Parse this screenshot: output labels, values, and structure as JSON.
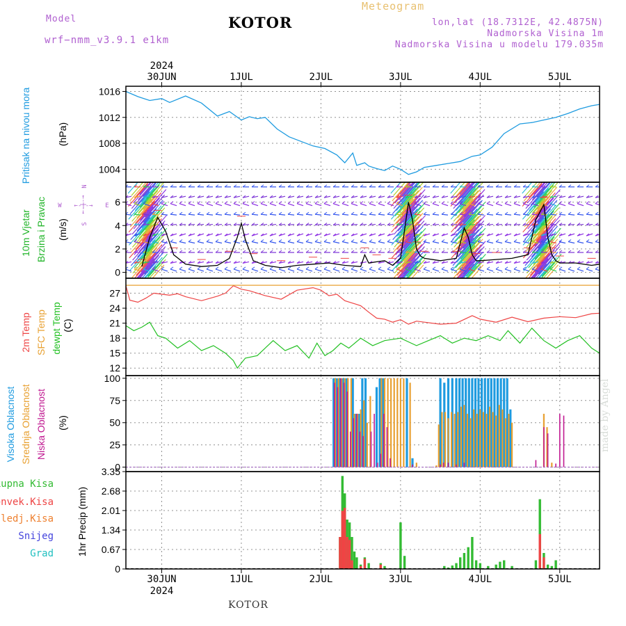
{
  "header": {
    "model_label": "Model",
    "model_name": "wrf−nmm_v3.9.1  e1km",
    "title": "KOTOR",
    "meteogram": "Meteogram",
    "lonlat": "lon,lat (18.7312E, 42.4875N)",
    "elevation": "Nadmorska Visina 1m",
    "model_elevation": "Nadmorska Visina u modelu 179.035m",
    "footer": "KOTOR",
    "credit": "made by Angel"
  },
  "colors": {
    "pressure": "#1e9be0",
    "wind_text": "#22b52a",
    "temp2m": "#ee4444",
    "sfc_temp": "#e8a030",
    "dewpt": "#22c022",
    "high_cloud": "#1e9be0",
    "mid_cloud": "#e8a030",
    "low_cloud": "#c01890",
    "total_precip": "#33bb33",
    "convective": "#ee4444",
    "frozen": "#ee8030",
    "snow": "#4444dd",
    "graupel": "#22c0c0",
    "compass": "#b060d0"
  },
  "chart_data": [
    {
      "type": "line",
      "top_year": "2024",
      "bottom_year": "2024",
      "x_categories": [
        "30JUN",
        "1JUL",
        "2JUL",
        "3JUL",
        "4JUL",
        "5JUL"
      ],
      "x_start": 29.55,
      "x_end": 35.5,
      "ylabel_main": "Pritisak na nivou mora",
      "ylabel_unit": "(hPa)",
      "ylim": [
        1002,
        1016.8
      ],
      "yticks": [
        1004,
        1008,
        1012,
        1016
      ],
      "series": [
        {
          "name": "Pritisak na nivou mora",
          "color_key": "pressure",
          "x": [
            29.55,
            29.7,
            29.85,
            30.0,
            30.1,
            30.3,
            30.5,
            30.7,
            30.85,
            31.0,
            31.1,
            31.2,
            31.3,
            31.45,
            31.6,
            31.75,
            31.9,
            32.05,
            32.2,
            32.3,
            32.4,
            32.45,
            32.55,
            32.6,
            32.7,
            32.8,
            32.9,
            33.0,
            33.1,
            33.2,
            33.3,
            33.45,
            33.6,
            33.75,
            33.9,
            34.0,
            34.15,
            34.3,
            34.5,
            34.65,
            34.8,
            34.95,
            35.1,
            35.25,
            35.4,
            35.5
          ],
          "values": [
            1016.0,
            1015.2,
            1014.6,
            1014.9,
            1014.3,
            1015.3,
            1014.2,
            1012.2,
            1012.9,
            1011.6,
            1012.1,
            1011.8,
            1012.0,
            1010.2,
            1009.0,
            1008.3,
            1007.6,
            1007.2,
            1006.2,
            1005.0,
            1006.5,
            1004.6,
            1005.0,
            1004.5,
            1004.1,
            1003.8,
            1004.5,
            1004.0,
            1003.2,
            1003.6,
            1004.3,
            1004.6,
            1004.9,
            1005.2,
            1006.0,
            1006.2,
            1007.4,
            1009.5,
            1011.0,
            1011.2,
            1011.6,
            1012.0,
            1012.6,
            1013.3,
            1013.8,
            1014.0
          ]
        }
      ]
    },
    {
      "type": "line",
      "ylabel_main_1": "10m Vjetar",
      "ylabel_main_2": "Brzina i Pravac",
      "ylabel_unit": "(m/s)",
      "compass": {
        "n": "N",
        "s": "S",
        "e": "E",
        "w": "W",
        "arrow": "←-|-→"
      },
      "ylim": [
        -0.5,
        7.7
      ],
      "yticks": [
        0,
        2,
        4,
        6
      ],
      "yticklabels": [
        "0",
        "2",
        "4",
        "6"
      ],
      "arrow_rows": [
        0.1,
        0.9,
        1.7,
        2.5,
        3.3,
        4.1,
        4.9,
        5.7,
        6.5,
        7.3
      ],
      "gust_bands": [
        [
          29.7,
          29.95
        ],
        [
          33.0,
          33.2
        ],
        [
          33.75,
          33.95
        ],
        [
          34.65,
          34.9
        ]
      ],
      "series": [
        {
          "name": "10m Vjetar",
          "color_key": "black",
          "x": [
            29.75,
            29.85,
            29.95,
            30.05,
            30.15,
            30.3,
            30.5,
            30.7,
            30.85,
            30.95,
            31.0,
            31.05,
            31.15,
            31.3,
            31.5,
            31.7,
            31.9,
            32.1,
            32.3,
            32.5,
            32.55,
            32.6,
            32.7,
            32.8,
            32.9,
            33.0,
            33.1,
            33.15,
            33.2,
            33.25,
            33.3,
            33.5,
            33.7,
            33.8,
            33.85,
            33.9,
            33.95,
            34.0,
            34.2,
            34.4,
            34.6,
            34.7,
            34.8,
            34.85,
            34.9,
            34.95,
            35.0,
            35.2,
            35.4,
            35.5
          ],
          "values": [
            0.5,
            3.0,
            4.7,
            3.5,
            1.5,
            0.7,
            0.5,
            0.6,
            1.2,
            3.0,
            4.2,
            2.8,
            1.0,
            0.6,
            0.4,
            0.6,
            0.7,
            0.8,
            0.6,
            0.5,
            1.5,
            0.8,
            0.9,
            1.0,
            0.6,
            1.2,
            6.0,
            4.5,
            2.0,
            1.4,
            1.2,
            1.0,
            1.2,
            3.8,
            3.0,
            1.5,
            1.0,
            1.0,
            1.1,
            1.2,
            1.5,
            4.5,
            5.8,
            3.0,
            1.5,
            1.0,
            0.8,
            0.8,
            0.6,
            0.7
          ]
        }
      ]
    },
    {
      "type": "line",
      "ylabel_main_1": "2m Temp",
      "ylabel_main_2": "SFC Temp",
      "ylabel_main_3": "dewpt Temp",
      "ylabel_unit": "(C)",
      "ylim": [
        10.5,
        30
      ],
      "yticks": [
        12,
        15,
        18,
        21,
        24,
        27
      ],
      "series": [
        {
          "name": "2m Temp",
          "color_key": "temp2m",
          "x": [
            29.55,
            29.6,
            29.7,
            29.8,
            29.9,
            30.0,
            30.1,
            30.2,
            30.3,
            30.5,
            30.7,
            30.8,
            30.9,
            31.0,
            31.1,
            31.3,
            31.5,
            31.7,
            31.9,
            32.0,
            32.1,
            32.2,
            32.3,
            32.4,
            32.5,
            32.6,
            32.7,
            32.8,
            32.9,
            33.0,
            33.1,
            33.2,
            33.3,
            33.5,
            33.7,
            33.9,
            34.0,
            34.2,
            34.4,
            34.6,
            34.8,
            35.0,
            35.2,
            35.4,
            35.5
          ],
          "values": [
            28.5,
            25.6,
            25.2,
            26.0,
            27.0,
            26.8,
            26.6,
            26.9,
            26.3,
            25.5,
            26.4,
            27.0,
            28.5,
            27.8,
            27.5,
            26.5,
            25.8,
            27.6,
            28.1,
            27.6,
            26.5,
            26.8,
            25.5,
            25.0,
            24.5,
            23.2,
            22.0,
            21.8,
            21.2,
            21.7,
            20.8,
            21.4,
            21.2,
            20.8,
            21.0,
            22.5,
            21.8,
            21.2,
            22.2,
            21.3,
            22.0,
            22.3,
            22.1,
            22.9,
            23.0
          ]
        },
        {
          "name": "SFC Temp",
          "color_key": "sfc_temp",
          "x": [
            29.55,
            35.5
          ],
          "values": [
            28.6,
            28.6
          ]
        },
        {
          "name": "dewpt Temp",
          "color_key": "dewpt",
          "x": [
            29.55,
            29.65,
            29.75,
            29.85,
            29.95,
            30.05,
            30.2,
            30.35,
            30.5,
            30.65,
            30.8,
            30.9,
            30.95,
            31.05,
            31.2,
            31.4,
            31.55,
            31.7,
            31.85,
            31.95,
            32.05,
            32.15,
            32.25,
            32.35,
            32.5,
            32.65,
            32.8,
            33.0,
            33.2,
            33.35,
            33.5,
            33.65,
            33.8,
            33.95,
            34.1,
            34.25,
            34.35,
            34.5,
            34.65,
            34.8,
            34.95,
            35.1,
            35.25,
            35.4,
            35.5
          ],
          "values": [
            20.5,
            19.5,
            20.2,
            21.2,
            18.5,
            18.0,
            16.0,
            17.5,
            15.5,
            16.5,
            15.0,
            13.5,
            12.0,
            14.0,
            14.5,
            17.5,
            15.5,
            16.5,
            14.0,
            17.0,
            14.5,
            15.5,
            17.0,
            16.0,
            18.0,
            16.5,
            17.5,
            18.0,
            16.5,
            17.5,
            18.5,
            17.0,
            18.0,
            17.5,
            18.5,
            17.5,
            19.5,
            17.0,
            20.0,
            17.5,
            16.0,
            17.5,
            18.5,
            16.0,
            15.0
          ]
        }
      ]
    },
    {
      "type": "bar",
      "ylabel_main_1": "Visoka Oblacnost",
      "ylabel_main_2": "Srednja Oblacnost",
      "ylabel_main_3": "Niska Oblacnost",
      "ylabel_unit": "(%)",
      "ylim": [
        -5,
        103
      ],
      "yticks": [
        0,
        25,
        50,
        75,
        100
      ],
      "series": [
        {
          "name": "Visoka Oblacnost",
          "color_key": "high_cloud",
          "x": [
            32.16,
            32.2,
            32.24,
            32.28,
            32.32,
            32.4,
            32.44,
            32.48,
            32.52,
            32.56,
            32.7,
            32.74,
            32.78,
            33.08,
            33.15,
            33.5,
            33.55,
            33.6,
            33.65,
            33.7,
            33.74,
            33.78,
            33.82,
            33.86,
            33.9,
            33.94,
            33.98,
            34.02,
            34.06,
            34.1,
            34.14,
            34.18,
            34.22,
            34.26,
            34.3,
            34.34,
            34.38
          ],
          "values": [
            100,
            100,
            100,
            100,
            100,
            100,
            60,
            60,
            100,
            100,
            90,
            100,
            100,
            100,
            10,
            100,
            95,
            100,
            100,
            100,
            100,
            100,
            100,
            100,
            100,
            100,
            100,
            100,
            100,
            100,
            100,
            100,
            100,
            100,
            100,
            100,
            65
          ]
        },
        {
          "name": "Srednja Oblacnost",
          "color_key": "mid_cloud",
          "x": [
            32.18,
            32.22,
            32.26,
            32.3,
            32.34,
            32.38,
            32.42,
            32.46,
            32.5,
            32.54,
            32.58,
            32.62,
            32.76,
            32.8,
            32.84,
            32.88,
            32.92,
            32.96,
            33.0,
            33.04,
            33.12,
            33.2,
            33.45,
            33.48,
            33.52,
            33.56,
            33.6,
            33.64,
            33.68,
            33.72,
            33.76,
            33.8,
            33.84,
            33.88,
            33.92,
            33.96,
            34.0,
            34.04,
            34.08,
            34.12,
            34.16,
            34.2,
            34.24,
            34.28,
            34.32,
            34.36,
            34.4,
            34.8,
            34.84,
            34.9
          ],
          "values": [
            100,
            100,
            100,
            100,
            100,
            100,
            60,
            60,
            65,
            75,
            50,
            80,
            100,
            100,
            100,
            100,
            100,
            100,
            100,
            100,
            95,
            5,
            2,
            48,
            62,
            62,
            55,
            62,
            60,
            62,
            68,
            70,
            60,
            55,
            65,
            60,
            65,
            62,
            60,
            68,
            62,
            58,
            70,
            65,
            55,
            60,
            50,
            60,
            45,
            5
          ]
        },
        {
          "name": "Niska Oblacnost",
          "color_key": "low_cloud",
          "x": [
            32.17,
            32.21,
            32.25,
            32.29,
            32.33,
            32.37,
            32.41,
            32.45,
            32.49,
            32.53,
            32.63,
            32.67,
            32.71,
            32.75,
            32.79,
            32.83,
            32.87,
            33.15,
            33.5,
            33.54,
            33.6,
            33.7,
            33.8,
            34.7,
            34.8,
            34.85,
            34.95,
            35.0,
            35.05
          ],
          "values": [
            95,
            90,
            100,
            95,
            85,
            40,
            55,
            60,
            40,
            35,
            40,
            60,
            5,
            15,
            60,
            45,
            10,
            3,
            3,
            5,
            5,
            3,
            5,
            8,
            45,
            38,
            4,
            60,
            58
          ]
        }
      ]
    },
    {
      "type": "bar",
      "ylabel_main": "1hr Precip",
      "ylabel_unit": "(mm)",
      "ylim": [
        0,
        3.35
      ],
      "yticks": [
        0,
        0.67,
        1.34,
        2.01,
        2.68,
        3.35
      ],
      "yticklabels": [
        "0",
        "0.67",
        "1.34",
        "2.01",
        "2.68",
        "3.35"
      ],
      "legend": [
        "Ukupna Kisa",
        "Konvek.Kisa",
        "Zaledj.Kisa",
        "Snijeg",
        "Grad"
      ],
      "series": [
        {
          "name": "Ukupna Kisa",
          "color_key": "total_precip",
          "x": [
            32.24,
            32.27,
            32.3,
            32.33,
            32.36,
            32.39,
            32.42,
            32.45,
            32.5,
            32.55,
            32.6,
            32.75,
            32.8,
            33.0,
            33.05,
            33.55,
            33.6,
            33.65,
            33.7,
            33.75,
            33.8,
            33.85,
            33.9,
            33.95,
            34.0,
            34.1,
            34.2,
            34.25,
            34.3,
            34.4,
            34.7,
            34.75,
            34.8,
            34.85,
            34.9,
            34.95
          ],
          "values": [
            1.1,
            3.2,
            2.6,
            1.7,
            1.6,
            1.1,
            0.6,
            0.4,
            0.15,
            0.4,
            0.2,
            0.2,
            0.1,
            1.6,
            0.45,
            0.1,
            0.05,
            0.12,
            0.2,
            0.4,
            0.55,
            0.75,
            1.1,
            0.3,
            0.2,
            0.1,
            0.15,
            0.25,
            0.3,
            0.1,
            0.3,
            2.4,
            0.55,
            0.15,
            0.1,
            0.3
          ]
        },
        {
          "name": "Konvek.Kisa",
          "color_key": "convective",
          "x": [
            32.24,
            32.27,
            32.3,
            32.33,
            32.36,
            32.39,
            32.5,
            32.55,
            32.75,
            34.75,
            34.8
          ],
          "values": [
            1.1,
            2.0,
            2.1,
            1.1,
            1.0,
            0.3,
            0.1,
            0.35,
            0.15,
            1.2,
            0.4
          ]
        },
        {
          "name": "Zaledj.Kisa",
          "color_key": "frozen",
          "x": [],
          "values": []
        },
        {
          "name": "Snijeg",
          "color_key": "snow",
          "x": [],
          "values": []
        },
        {
          "name": "Grad",
          "color_key": "graupel",
          "x": [],
          "values": []
        }
      ]
    }
  ]
}
